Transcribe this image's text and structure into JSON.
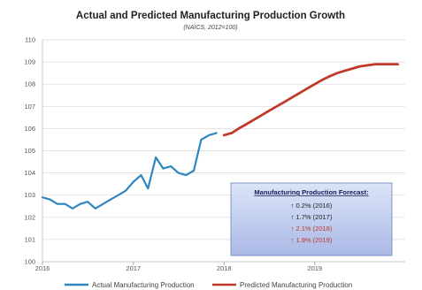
{
  "colors": {
    "actual": "#2e86c1",
    "predicted": "#c0392b",
    "forecast_black": "#222222",
    "forecast_red": "#c0392b",
    "grid": "#d9d9d9"
  },
  "chart_data": {
    "type": "line",
    "title": "Actual and Predicted Manufacturing Production Growth",
    "subtitle": "(NAICS, 2012=100)",
    "xlabel": "",
    "ylabel": "",
    "ylim": [
      100,
      110
    ],
    "xlim": [
      "2016-01-01",
      "2019-12-31"
    ],
    "x_ticks": [
      "2016",
      "2017",
      "2018",
      "2019"
    ],
    "y_ticks": [
      100,
      101,
      102,
      103,
      104,
      105,
      106,
      107,
      108,
      109,
      110
    ],
    "grid": true,
    "legend_position": "bottom",
    "series": [
      {
        "name": "Actual Manufacturing Production",
        "color": "#2e86c1",
        "x": [
          "2016-01-01",
          "2016-02-01",
          "2016-03-01",
          "2016-04-01",
          "2016-05-01",
          "2016-06-01",
          "2016-07-01",
          "2016-08-01",
          "2016-09-01",
          "2016-10-01",
          "2016-11-01",
          "2016-12-01",
          "2017-01-01",
          "2017-02-01",
          "2017-03-01",
          "2017-04-01",
          "2017-05-01",
          "2017-06-01",
          "2017-07-01",
          "2017-08-01",
          "2017-09-01",
          "2017-10-01",
          "2017-11-01",
          "2017-12-01"
        ],
        "y": [
          102.9,
          102.8,
          102.6,
          102.6,
          102.4,
          102.6,
          102.7,
          102.4,
          102.6,
          102.8,
          103.0,
          103.2,
          103.6,
          103.9,
          103.3,
          104.7,
          104.2,
          104.3,
          104.0,
          103.9,
          104.1,
          105.5,
          105.7,
          105.8
        ]
      },
      {
        "name": "Predicted Manufacturing Production",
        "color": "#c0392b",
        "x": [
          "2018-01-01",
          "2018-02-01",
          "2018-03-01",
          "2018-04-01",
          "2018-05-01",
          "2018-06-01",
          "2018-07-01",
          "2018-08-01",
          "2018-09-01",
          "2018-10-01",
          "2018-11-01",
          "2018-12-01",
          "2019-01-01",
          "2019-02-01",
          "2019-03-01",
          "2019-04-01",
          "2019-05-01",
          "2019-06-01",
          "2019-07-01",
          "2019-08-01",
          "2019-09-01",
          "2019-10-01",
          "2019-11-01",
          "2019-12-01"
        ],
        "y": [
          105.7,
          105.8,
          106.0,
          106.2,
          106.4,
          106.6,
          106.8,
          107.0,
          107.2,
          107.4,
          107.6,
          107.8,
          108.0,
          108.2,
          108.35,
          108.5,
          108.6,
          108.7,
          108.8,
          108.85,
          108.9,
          108.9,
          108.9,
          108.9
        ]
      }
    ],
    "annotations": [
      {
        "title": "Manufacturing Production Forecast:",
        "lines": [
          {
            "text": "↑ 0.2% (2016)",
            "color": "#222222"
          },
          {
            "text": "↑ 1.7% (2017)",
            "color": "#222222"
          },
          {
            "text": "↑ 2.1% (2018)",
            "color": "#c0392b"
          },
          {
            "text": "↑ 1.9% (2019)",
            "color": "#c0392b"
          }
        ]
      }
    ]
  }
}
